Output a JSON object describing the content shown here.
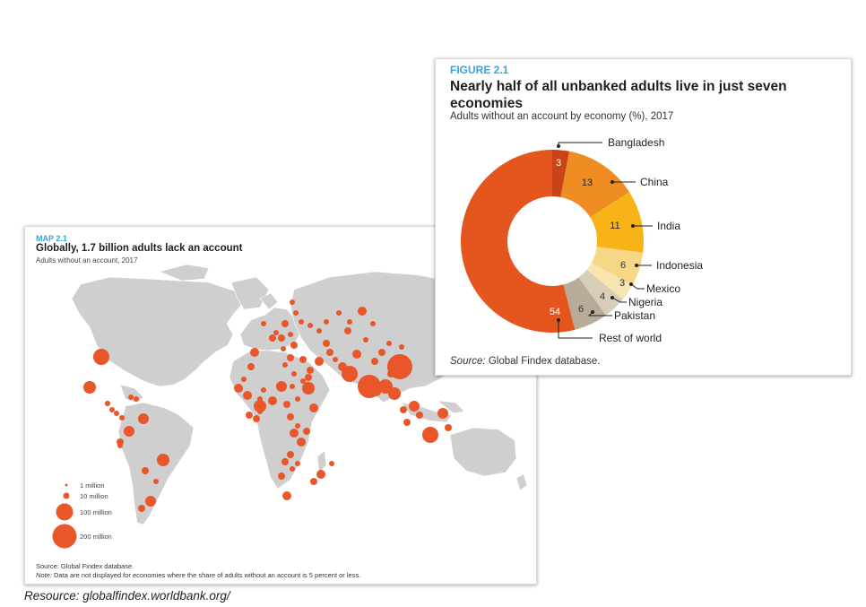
{
  "map": {
    "kicker": "MAP 2.1",
    "title": "Globally, 1.7 billion adults lack an account",
    "subtitle": "Adults without an account, 2017",
    "legend": [
      {
        "label": "1 million",
        "value": 1
      },
      {
        "label": "10 million",
        "value": 10
      },
      {
        "label": "100 million",
        "value": 100
      },
      {
        "label": "200 million",
        "value": 200
      }
    ],
    "source": "Source: Global Findex database.",
    "note_label": "Note:",
    "note_text": " Data are not displayed for economies where the share of adults without an account is 5 percent or less.",
    "colors": {
      "land": "#cfcfcf",
      "bubble": "#e8562a"
    }
  },
  "figure": {
    "kicker": "FIGURE 2.1",
    "title": "Nearly half of all unbanked adults live in just seven economies",
    "subtitle": "Adults without an account by economy (%), 2017",
    "source_label": "Source:",
    "source_text": " Global Findex database."
  },
  "chart_data": {
    "type": "pie",
    "donut": true,
    "unit": "%",
    "slices": [
      {
        "label": "Bangladesh",
        "value": 3,
        "color": "#c94316"
      },
      {
        "label": "China",
        "value": 13,
        "color": "#ef8c22"
      },
      {
        "label": "India",
        "value": 11,
        "color": "#f8b319"
      },
      {
        "label": "Indonesia",
        "value": 6,
        "color": "#f7d786"
      },
      {
        "label": "Mexico",
        "value": 3,
        "color": "#f6e5ae"
      },
      {
        "label": "Nigeria",
        "value": 4,
        "color": "#d8cdb6"
      },
      {
        "label": "Pakistan",
        "value": 6,
        "color": "#b9ab99"
      },
      {
        "label": "Rest of world",
        "value": 54,
        "color": "#e5561f"
      }
    ]
  },
  "resource": "Resource: globalfindex.worldbank.org/"
}
